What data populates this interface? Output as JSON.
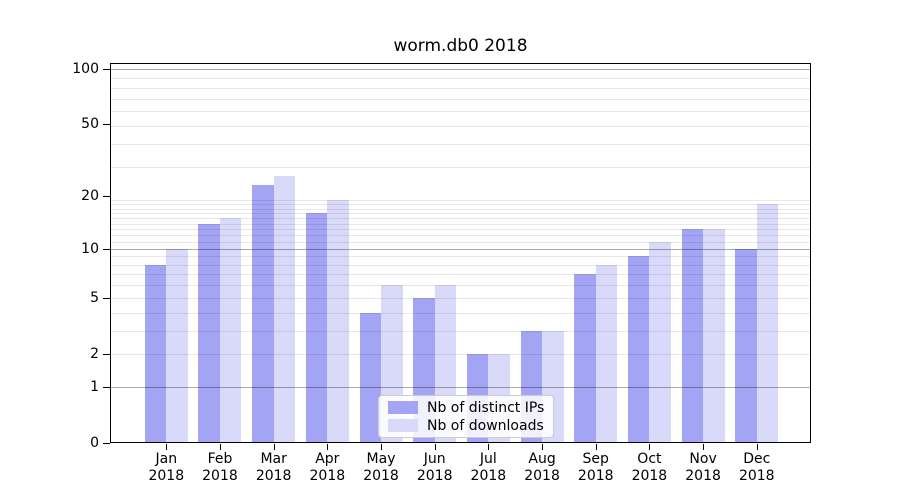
{
  "chart_data": {
    "type": "bar",
    "title": "worm.db0 2018",
    "x": [
      "Jan",
      "Feb",
      "Mar",
      "Apr",
      "May",
      "Jun",
      "Jul",
      "Aug",
      "Sep",
      "Oct",
      "Nov",
      "Dec"
    ],
    "x_year": "2018",
    "series": [
      {
        "name": "Nb of distinct IPs",
        "color": "#a4a4f4",
        "values": [
          8,
          14,
          23,
          16,
          4,
          5,
          2,
          3,
          7,
          9,
          13,
          10
        ]
      },
      {
        "name": "Nb of downloads",
        "color": "#d9d9fa",
        "values": [
          10,
          15,
          26,
          19,
          6,
          6,
          2,
          3,
          8,
          11,
          13,
          18
        ]
      }
    ],
    "yscale": "log10(value+1)",
    "y_ticks": [
      0,
      1,
      2,
      5,
      10,
      20,
      50,
      100
    ],
    "ylim": [
      0,
      110
    ],
    "grid": {
      "major_values": [
        1,
        10,
        100
      ],
      "minor_values": [
        2,
        3,
        4,
        5,
        6,
        7,
        8,
        9,
        11,
        12,
        13,
        14,
        15,
        16,
        17,
        18,
        19,
        29,
        39,
        49,
        59,
        69,
        79,
        89
      ],
      "major_color": "rgba(0,0,0,0.33)",
      "minor_color": "rgba(0,0,0,0.09)"
    },
    "legend_position": "lower center",
    "axis_color": "#000000",
    "background_color": "#ffffff"
  }
}
